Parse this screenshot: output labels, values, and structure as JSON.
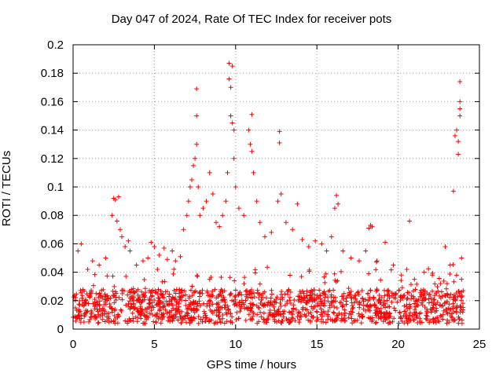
{
  "chart_data": {
    "type": "scatter",
    "title": "Day 047 of 2024, Rate Of TEC Index for receiver pots",
    "xlabel": "GPS time / hours",
    "ylabel": "ROTI / TECUs",
    "xlim": [
      0,
      25
    ],
    "ylim": [
      0,
      0.2
    ],
    "xticks": [
      "0",
      "5",
      "10",
      "15",
      "20",
      "25"
    ],
    "yticks": [
      "0",
      "0.02",
      "0.04",
      "0.06",
      "0.08",
      "0.1",
      "0.12",
      "0.14",
      "0.16",
      "0.18",
      "0.2"
    ],
    "grid": true,
    "marker": "+",
    "color": "#ff0000",
    "series": [
      {
        "name": "ROTI",
        "points": [
          [
            0.3,
            0.055
          ],
          [
            0.5,
            0.06
          ],
          [
            0.9,
            0.042
          ],
          [
            1.2,
            0.048
          ],
          [
            1.6,
            0.045
          ],
          [
            2.0,
            0.05
          ],
          [
            2.4,
            0.08
          ],
          [
            2.5,
            0.092
          ],
          [
            2.6,
            0.091
          ],
          [
            2.7,
            0.076
          ],
          [
            2.8,
            0.093
          ],
          [
            2.9,
            0.07
          ],
          [
            3.0,
            0.065
          ],
          [
            3.2,
            0.058
          ],
          [
            3.4,
            0.062
          ],
          [
            3.5,
            0.055
          ],
          [
            3.9,
            0.045
          ],
          [
            4.3,
            0.048
          ],
          [
            4.6,
            0.05
          ],
          [
            4.8,
            0.061
          ],
          [
            5.0,
            0.058
          ],
          [
            5.3,
            0.052
          ],
          [
            5.6,
            0.057
          ],
          [
            5.8,
            0.049
          ],
          [
            6.1,
            0.055
          ],
          [
            6.3,
            0.048
          ],
          [
            6.6,
            0.051
          ],
          [
            6.8,
            0.07
          ],
          [
            7.0,
            0.08
          ],
          [
            7.1,
            0.09
          ],
          [
            7.2,
            0.1
          ],
          [
            7.3,
            0.105
          ],
          [
            7.4,
            0.115
          ],
          [
            7.5,
            0.12
          ],
          [
            7.6,
            0.13
          ],
          [
            7.6,
            0.169
          ],
          [
            7.6,
            0.15
          ],
          [
            7.7,
            0.1
          ],
          [
            7.8,
            0.08
          ],
          [
            8.0,
            0.085
          ],
          [
            8.2,
            0.09
          ],
          [
            8.4,
            0.11
          ],
          [
            8.6,
            0.095
          ],
          [
            8.8,
            0.075
          ],
          [
            9.0,
            0.072
          ],
          [
            9.2,
            0.08
          ],
          [
            9.4,
            0.09
          ],
          [
            9.5,
            0.11
          ],
          [
            9.6,
            0.187
          ],
          [
            9.6,
            0.176
          ],
          [
            9.7,
            0.17
          ],
          [
            9.7,
            0.15
          ],
          [
            9.8,
            0.145
          ],
          [
            9.8,
            0.185
          ],
          [
            9.9,
            0.14
          ],
          [
            9.9,
            0.12
          ],
          [
            10.0,
            0.1
          ],
          [
            10.2,
            0.085
          ],
          [
            10.5,
            0.08
          ],
          [
            10.8,
            0.14
          ],
          [
            10.9,
            0.13
          ],
          [
            11.0,
            0.151
          ],
          [
            11.0,
            0.125
          ],
          [
            11.1,
            0.11
          ],
          [
            11.3,
            0.09
          ],
          [
            11.5,
            0.075
          ],
          [
            11.8,
            0.065
          ],
          [
            12.2,
            0.068
          ],
          [
            12.6,
            0.09
          ],
          [
            12.7,
            0.131
          ],
          [
            12.7,
            0.139
          ],
          [
            12.8,
            0.095
          ],
          [
            13.1,
            0.075
          ],
          [
            13.5,
            0.07
          ],
          [
            13.8,
            0.088
          ],
          [
            14.1,
            0.063
          ],
          [
            14.5,
            0.058
          ],
          [
            14.9,
            0.062
          ],
          [
            15.3,
            0.06
          ],
          [
            15.6,
            0.055
          ],
          [
            15.9,
            0.065
          ],
          [
            16.1,
            0.085
          ],
          [
            16.2,
            0.094
          ],
          [
            16.3,
            0.088
          ],
          [
            16.6,
            0.055
          ],
          [
            17.1,
            0.05
          ],
          [
            17.6,
            0.048
          ],
          [
            18.0,
            0.055
          ],
          [
            18.2,
            0.071
          ],
          [
            18.3,
            0.073
          ],
          [
            18.4,
            0.072
          ],
          [
            18.7,
            0.048
          ],
          [
            19.2,
            0.061
          ],
          [
            19.7,
            0.045
          ],
          [
            20.2,
            0.038
          ],
          [
            20.7,
            0.076
          ],
          [
            21.0,
            0.035
          ],
          [
            21.6,
            0.04
          ],
          [
            22.1,
            0.038
          ],
          [
            22.6,
            0.032
          ],
          [
            22.9,
            0.058
          ],
          [
            23.2,
            0.045
          ],
          [
            23.4,
            0.097
          ],
          [
            23.5,
            0.136
          ],
          [
            23.6,
            0.14
          ],
          [
            23.7,
            0.132
          ],
          [
            23.7,
            0.123
          ],
          [
            23.8,
            0.16
          ],
          [
            23.8,
            0.155
          ],
          [
            23.8,
            0.15
          ],
          [
            23.8,
            0.174
          ],
          [
            23.9,
            0.05
          ],
          [
            23.9,
            0.035
          ]
        ]
      }
    ]
  }
}
